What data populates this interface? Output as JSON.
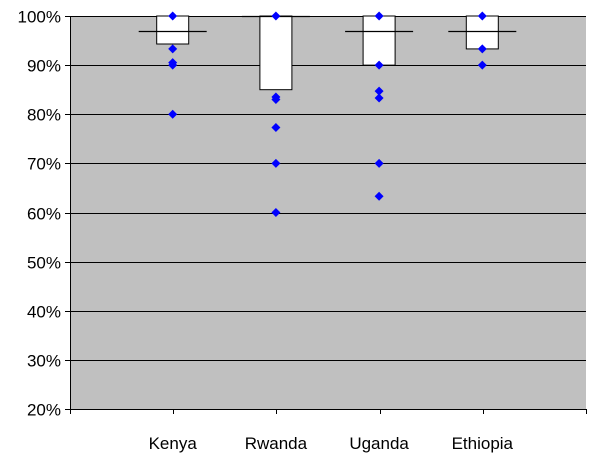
{
  "chart_data": {
    "type": "box",
    "categories": [
      "Kenya",
      "Rwanda",
      "Uganda",
      "Ethiopia"
    ],
    "y_tick_labels": [
      "20%",
      "30%",
      "40%",
      "50%",
      "60%",
      "70%",
      "80%",
      "90%",
      "100%"
    ],
    "ylim": [
      20,
      100
    ],
    "y_unit": "percent",
    "grid": true,
    "legend": "none",
    "boxes": [
      {
        "category": "Kenya",
        "q1": 94.3,
        "q3": 100,
        "median_line": 97,
        "points": [
          100,
          93.3,
          90.5,
          90,
          80
        ]
      },
      {
        "category": "Rwanda",
        "q1": 85,
        "q3": 100,
        "median_line": 100,
        "points": [
          100,
          83.5,
          83,
          77.3,
          70,
          60
        ]
      },
      {
        "category": "Uganda",
        "q1": 90,
        "q3": 100,
        "median_line": 97,
        "points": [
          100,
          90,
          84.7,
          83.3,
          70,
          63.3
        ]
      },
      {
        "category": "Ethiopia",
        "q1": 93.3,
        "q3": 100,
        "median_line": 97,
        "points": [
          100,
          93.3,
          90
        ]
      }
    ],
    "colors": {
      "plot_background": "#c0c0c0",
      "box_fill": "#ffffff",
      "point": "#0000ff",
      "grid": "#000000"
    }
  }
}
